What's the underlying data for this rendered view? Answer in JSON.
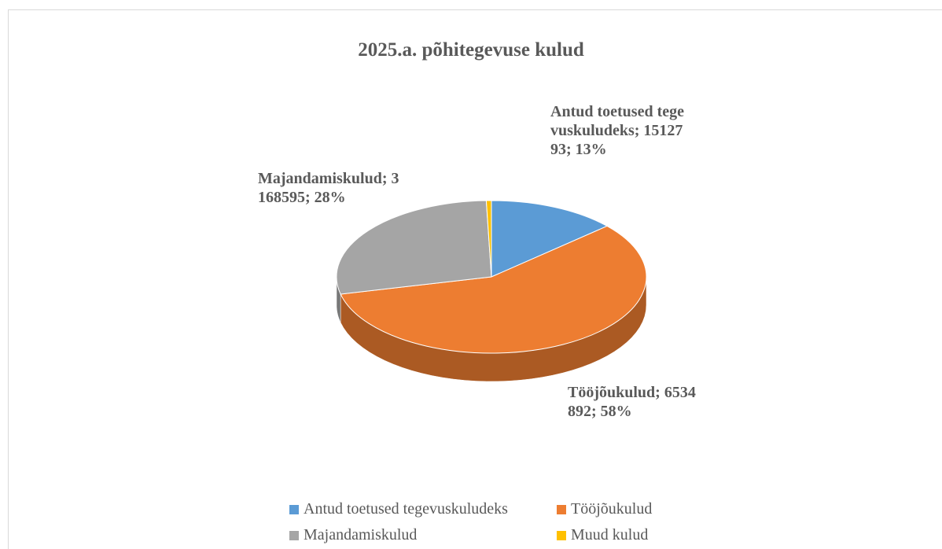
{
  "chart_data": {
    "type": "pie3d",
    "title": "2025.a. põhitegevuse kulud",
    "categories": [
      "Antud toetused tegevuskuludeks",
      "Tööjõukulud",
      "Majandamiskulud",
      "Muud kulud"
    ],
    "values": [
      1512793,
      6534892,
      3168595,
      60000
    ],
    "value_labels": [
      "Antud toetused tegevuskuludeks; 1512793; 13%",
      "Tööjõukulud; 6534892; 58%",
      "Majandamiskulud; 3168595; 28%",
      null
    ],
    "colors": [
      "#5b9bd5",
      "#ed7d31",
      "#a5a5a5",
      "#ffc000"
    ],
    "legend": "bottom"
  }
}
